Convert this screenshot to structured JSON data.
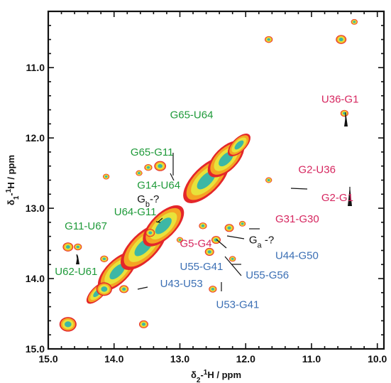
{
  "chart_data": {
    "type": "scatter",
    "title": "",
    "xlabel": {
      "pre": "δ",
      "sub": "2",
      "dash": "-",
      "sup": "1",
      "post": "H / ppm"
    },
    "ylabel": {
      "pre": "δ",
      "sub": "1",
      "dash": "-",
      "sup": "1",
      "post": "H / ppm"
    },
    "xlim": [
      15.0,
      9.9
    ],
    "ylim": [
      10.2,
      15.0
    ],
    "x_reversed": true,
    "y_reversed": true,
    "x_major_ticks": [
      15.0,
      14.0,
      13.0,
      12.0,
      11.0,
      10.0
    ],
    "x_tick_labels": [
      "15.0",
      "14.0",
      "13.0",
      "12.0",
      "11.0",
      "10.0"
    ],
    "y_major_ticks": [
      11.0,
      12.0,
      13.0,
      14.0,
      15.0
    ],
    "y_tick_labels": [
      "11.0",
      "12.0",
      "13.0",
      "14.0",
      "15.0"
    ],
    "grid": false,
    "colors": {
      "green": "#1f9a3a",
      "pink": "#d6265f",
      "blue": "#3b6fb4",
      "black": "#111111",
      "contour_outer": "#e4262a",
      "contour_mid": "#f5a423",
      "contour_inner": "#e8e23a",
      "contour_core": "#3db7a5"
    },
    "diagonal": [
      {
        "x": 14.25,
        "y": 14.2,
        "rx": 0.22,
        "ry": 0.16
      },
      {
        "x": 13.95,
        "y": 13.9,
        "rx": 0.38,
        "ry": 0.3
      },
      {
        "x": 13.55,
        "y": 13.55,
        "rx": 0.45,
        "ry": 0.35
      },
      {
        "x": 13.25,
        "y": 13.25,
        "rx": 0.4,
        "ry": 0.32
      },
      {
        "x": 12.6,
        "y": 12.6,
        "rx": 0.45,
        "ry": 0.35
      },
      {
        "x": 12.3,
        "y": 12.3,
        "rx": 0.35,
        "ry": 0.3
      },
      {
        "x": 12.1,
        "y": 12.1,
        "rx": 0.22,
        "ry": 0.18
      }
    ],
    "peaks": [
      {
        "x": 14.7,
        "y": 14.65,
        "r": 0.13
      },
      {
        "x": 13.55,
        "y": 14.65,
        "r": 0.07
      },
      {
        "x": 14.15,
        "y": 14.15,
        "r": 0.12
      },
      {
        "x": 13.85,
        "y": 14.15,
        "r": 0.07
      },
      {
        "x": 14.7,
        "y": 13.55,
        "r": 0.08
      },
      {
        "x": 14.55,
        "y": 13.55,
        "r": 0.06
      },
      {
        "x": 14.15,
        "y": 13.72,
        "r": 0.06
      },
      {
        "x": 11.65,
        "y": 10.6,
        "r": 0.06
      },
      {
        "x": 10.55,
        "y": 10.6,
        "r": 0.08
      },
      {
        "x": 10.35,
        "y": 10.35,
        "r": 0.05
      },
      {
        "x": 10.5,
        "y": 11.65,
        "r": 0.06
      },
      {
        "x": 11.65,
        "y": 12.6,
        "r": 0.05
      },
      {
        "x": 12.05,
        "y": 13.22,
        "r": 0.05
      },
      {
        "x": 12.25,
        "y": 13.28,
        "r": 0.07
      },
      {
        "x": 12.65,
        "y": 13.25,
        "r": 0.06
      },
      {
        "x": 12.55,
        "y": 13.62,
        "r": 0.07
      },
      {
        "x": 12.45,
        "y": 13.45,
        "r": 0.07
      },
      {
        "x": 12.2,
        "y": 13.72,
        "r": 0.05
      },
      {
        "x": 12.5,
        "y": 14.15,
        "r": 0.06
      },
      {
        "x": 13.45,
        "y": 13.35,
        "r": 0.07
      },
      {
        "x": 13.0,
        "y": 13.45,
        "r": 0.05
      },
      {
        "x": 13.3,
        "y": 12.4,
        "r": 0.09
      },
      {
        "x": 13.48,
        "y": 12.42,
        "r": 0.06
      },
      {
        "x": 14.12,
        "y": 12.55,
        "r": 0.05
      },
      {
        "x": 13.62,
        "y": 12.5,
        "r": 0.05
      }
    ],
    "annotations": [
      {
        "text": "U36-G1",
        "color": "pink",
        "x": 10.85,
        "y": 11.5
      },
      {
        "text": "G2-U36",
        "color": "pink",
        "x": 11.2,
        "y": 12.5
      },
      {
        "text": "G2-G1",
        "color": "pink",
        "x": 10.85,
        "y": 12.9
      },
      {
        "text": "G31-G30",
        "color": "pink",
        "x": 11.55,
        "y": 13.2
      },
      {
        "text": "G5-G4",
        "color": "pink",
        "x": 13.0,
        "y": 13.55
      },
      {
        "text": "G65-U64",
        "color": "green",
        "x": 13.15,
        "y": 11.72
      },
      {
        "text": "G65-G11",
        "color": "green",
        "x": 13.75,
        "y": 12.25
      },
      {
        "text": "G14-U64",
        "color": "green",
        "x": 13.65,
        "y": 12.72
      },
      {
        "text": "U64-G11",
        "color": "green",
        "x": 14.0,
        "y": 13.1
      },
      {
        "text": "G11-U67",
        "color": "green",
        "x": 14.75,
        "y": 13.3
      },
      {
        "text": "U62-U61",
        "color": "green",
        "x": 14.9,
        "y": 13.95
      },
      {
        "text": "U55-G41",
        "color": "blue",
        "x": 13.0,
        "y": 13.88
      },
      {
        "text": "U44-G50",
        "color": "blue",
        "x": 11.55,
        "y": 13.72
      },
      {
        "text": "U55-G56",
        "color": "blue",
        "x": 12.0,
        "y": 14.0
      },
      {
        "text": "U43-U53",
        "color": "blue",
        "x": 13.3,
        "y": 14.12
      },
      {
        "text": "U53-G41",
        "color": "blue",
        "x": 12.45,
        "y": 14.42
      }
    ],
    "special_labels": [
      {
        "main": "G",
        "sub": "b",
        "suffix": "-?",
        "color": "black",
        "x": 13.65,
        "y": 12.92
      },
      {
        "main": "G",
        "sub": "a",
        "suffix": " -?",
        "color": "black",
        "x": 11.95,
        "y": 13.5
      }
    ]
  }
}
